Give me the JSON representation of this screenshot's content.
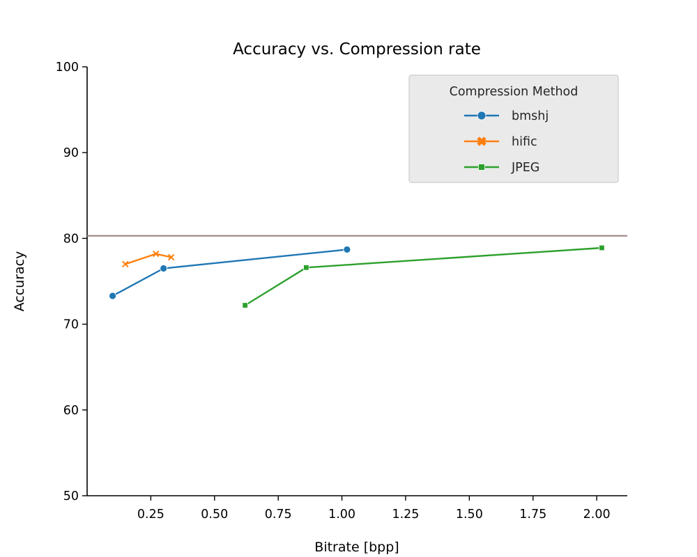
{
  "chart_data": {
    "type": "line",
    "title": "Accuracy vs. Compression rate",
    "xlabel": "Bitrate [bpp]",
    "ylabel": "Accuracy",
    "xlim": [
      0.0,
      2.12
    ],
    "ylim": [
      50,
      100
    ],
    "xticks": [
      0.25,
      0.5,
      0.75,
      1.0,
      1.25,
      1.5,
      1.75,
      2.0
    ],
    "xtick_labels": [
      "0.25",
      "0.50",
      "0.75",
      "1.00",
      "1.25",
      "1.50",
      "1.75",
      "2.00"
    ],
    "yticks": [
      50,
      60,
      70,
      80,
      90,
      100
    ],
    "ytick_labels": [
      "50",
      "60",
      "70",
      "80",
      "90",
      "100"
    ],
    "grid": false,
    "legend": {
      "title": "Compression Method",
      "placement": "top-right"
    },
    "reference_line": {
      "y": 80.3,
      "color": "#9c8582"
    },
    "series": [
      {
        "name": "bmshj",
        "color": "#1f77b4",
        "marker": "circle",
        "x": [
          0.1,
          0.3,
          1.02
        ],
        "y": [
          73.3,
          76.5,
          78.7
        ]
      },
      {
        "name": "hific",
        "color": "#ff7f0e",
        "marker": "x",
        "x": [
          0.15,
          0.27,
          0.33
        ],
        "y": [
          77.0,
          78.2,
          77.8
        ]
      },
      {
        "name": "JPEG",
        "color": "#2ca02c",
        "marker": "square",
        "x": [
          0.62,
          0.86,
          2.02
        ],
        "y": [
          72.2,
          76.6,
          78.9
        ]
      }
    ]
  }
}
